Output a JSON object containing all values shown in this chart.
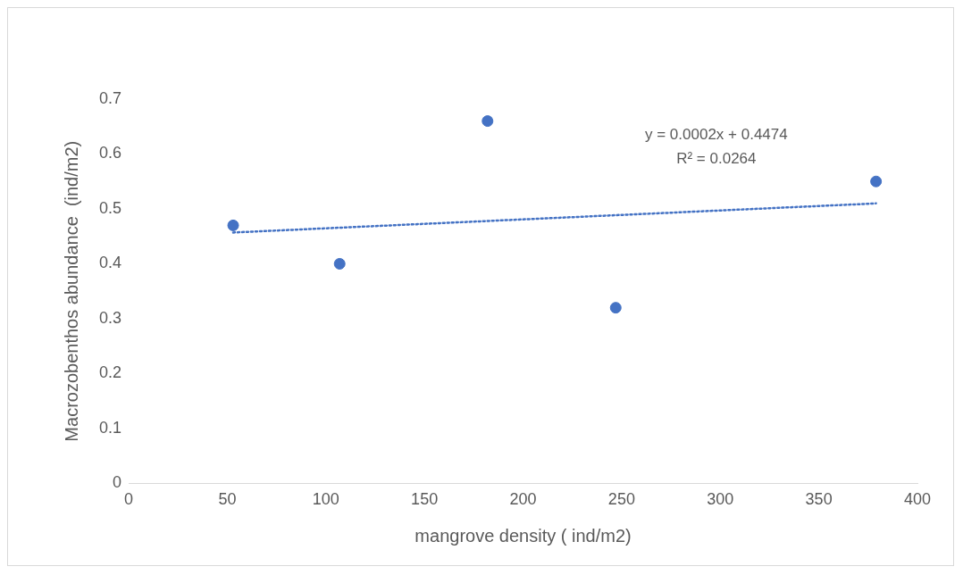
{
  "chart_data": {
    "type": "scatter",
    "xlabel": "mangrove density ( ind/m2)",
    "ylabel": "Macrozobenthos abundance  (ind/m2)",
    "xlim": [
      0,
      400
    ],
    "xticks": [
      0,
      50,
      100,
      150,
      200,
      250,
      300,
      350,
      400
    ],
    "ylim": [
      0,
      0.7
    ],
    "yticks": [
      0,
      0.1,
      0.2,
      0.3,
      0.4,
      0.5,
      0.6,
      0.7
    ],
    "grid": false,
    "legend": false,
    "series": [
      {
        "type": "scatter",
        "color": "#4472c4",
        "marker": "circle",
        "x": [
          53,
          107,
          182,
          247,
          379
        ],
        "values": [
          0.47,
          0.4,
          0.66,
          0.32,
          0.55
        ]
      },
      {
        "type": "line",
        "color": "#4472c4",
        "marker": "none",
        "line_style": "dotted",
        "x": [
          53,
          379
        ],
        "values": [
          0.457,
          0.51
        ]
      }
    ],
    "annotations": [
      "y = 0.0002x + 0.4474",
      "R² = 0.0264"
    ]
  }
}
